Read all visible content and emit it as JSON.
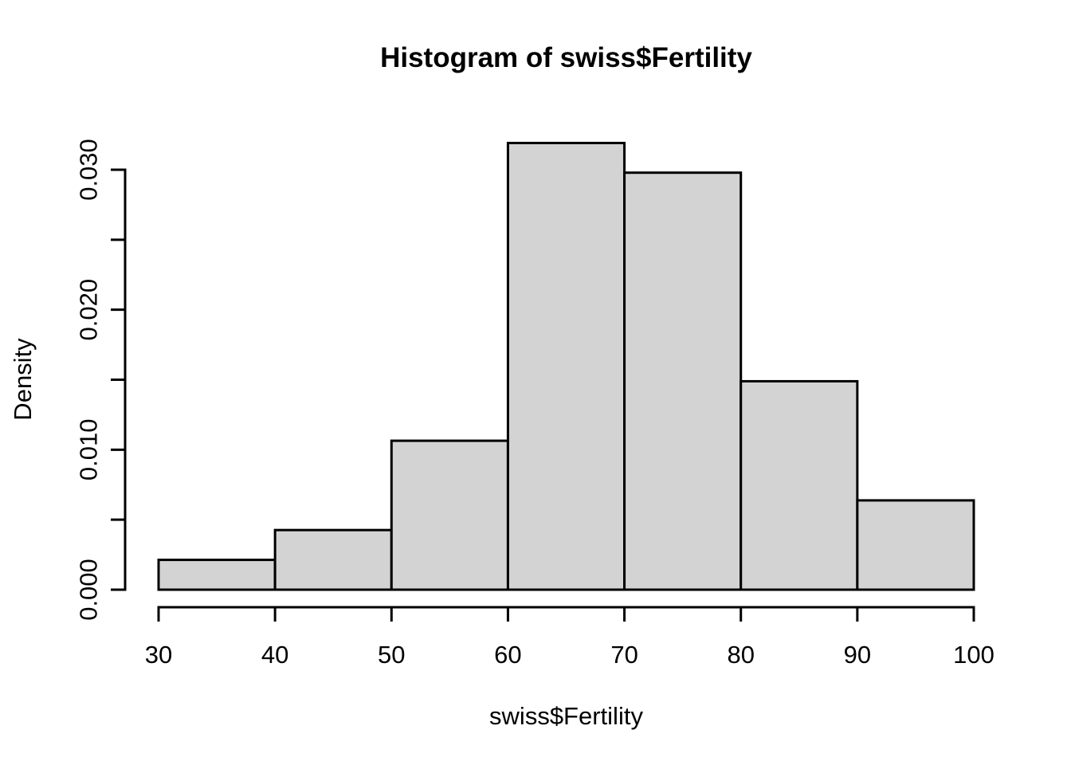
{
  "chart_data": {
    "type": "bar",
    "subtype": "histogram",
    "title": "Histogram of swiss$Fertility",
    "xlabel": "swiss$Fertility",
    "ylabel": "Density",
    "bin_edges": [
      30,
      40,
      50,
      60,
      70,
      80,
      90,
      100
    ],
    "densities": [
      0.00213,
      0.00426,
      0.01064,
      0.03191,
      0.02979,
      0.01489,
      0.00638
    ],
    "x_tick_values": [
      30,
      40,
      50,
      60,
      70,
      80,
      90,
      100
    ],
    "x_tick_labels": [
      "30",
      "40",
      "50",
      "60",
      "70",
      "80",
      "90",
      "100"
    ],
    "y_tick_values": [
      0,
      0.005,
      0.01,
      0.015,
      0.02,
      0.025,
      0.03
    ],
    "y_tick_labels": [
      "0.000",
      "",
      "0.010",
      "",
      "0.020",
      "",
      "0.030"
    ],
    "xlim": [
      30,
      100
    ],
    "ylim": [
      0,
      0.03
    ],
    "grid": false,
    "legend": "none",
    "colors": {
      "bar_fill": "#D3D3D3",
      "bar_stroke": "#000000",
      "axis": "#000000",
      "text": "#000000",
      "background": "#FFFFFF"
    }
  }
}
